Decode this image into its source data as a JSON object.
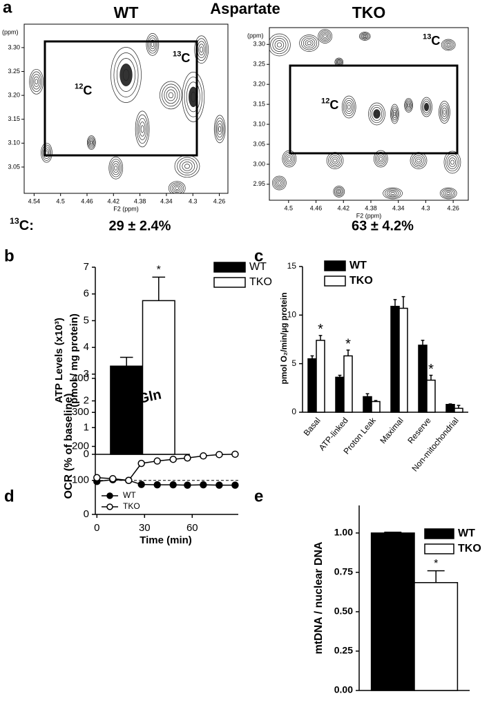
{
  "chart_data": [
    {
      "type": "nmr",
      "panel": "a",
      "heading": "Aspartate",
      "title": "WT",
      "xlabel": "F2 (ppm)",
      "ylabel": "(ppm)",
      "xlim": [
        4.555,
        4.247
      ],
      "ylim": [
        2.995,
        3.349
      ],
      "xticks": [
        4.54,
        4.5,
        4.46,
        4.42,
        4.38,
        4.34,
        4.3,
        4.26
      ],
      "yticks": [
        {
          "value": 3.05,
          "label": "3.05"
        },
        {
          "value": 3.1,
          "label": "3.10"
        },
        {
          "value": 3.15,
          "label": "3.15"
        },
        {
          "value": 3.2,
          "label": "3.20"
        },
        {
          "value": 3.25,
          "label": "3.25"
        },
        {
          "value": 3.3,
          "label": "3.30"
        }
      ],
      "annotations": [
        {
          "sup": "12",
          "text": "C"
        },
        {
          "sup": "13",
          "text": "C"
        }
      ],
      "isotope_label": {
        "sup": "13",
        "text": "C:"
      },
      "result": "29 ± 2.4%"
    },
    {
      "type": "nmr",
      "title": "TKO",
      "xlabel": "F2 (ppm)",
      "ylabel": "(ppm)",
      "xlim": [
        4.528,
        4.238
      ],
      "ylim": [
        2.91,
        3.342
      ],
      "xticks": [
        4.5,
        4.46,
        4.42,
        4.38,
        4.34,
        4.3,
        4.26
      ],
      "yticks": [
        2.95,
        {
          "value": 3.0,
          "label": "3.00"
        },
        3.05,
        {
          "value": 3.1,
          "label": "3.10"
        },
        3.15,
        {
          "value": 3.2,
          "label": "3.20"
        },
        3.25,
        {
          "value": 3.3,
          "label": "3.30"
        }
      ],
      "annotations": [
        {
          "sup": "12",
          "text": "C"
        },
        {
          "sup": "13",
          "text": "C"
        }
      ],
      "result": "63 ± 4.2%"
    },
    {
      "type": "bar",
      "panel": "b",
      "ylabel": [
        "ATP Levels (x10³)",
        "(pmol / mg protein)"
      ],
      "categories": [
        null
      ],
      "series": [
        {
          "name": "WT",
          "color": "#000000",
          "values": [
            3.3
          ],
          "errors": [
            0.33
          ]
        },
        {
          "name": "TKO",
          "color": "#ffffff",
          "values": [
            5.75
          ],
          "errors": [
            0.88
          ]
        }
      ],
      "annotations": [
        {
          "text": "*",
          "series": "TKO"
        }
      ],
      "ylim": [
        0,
        7
      ],
      "yticks": [
        0,
        1,
        2,
        3,
        4,
        5,
        6,
        7
      ]
    },
    {
      "type": "bar",
      "panel": "c",
      "ylabel": [
        "pmol O₂/min/µg protein"
      ],
      "categories": [
        "Basal",
        "ATP-linked",
        "Proton Leak",
        "Maximal",
        "Reserve",
        "Non-mitochondrial"
      ],
      "series": [
        {
          "name": "WT",
          "color": "#000000",
          "values": [
            5.5,
            3.6,
            1.6,
            10.9,
            6.9,
            0.8
          ],
          "errors": [
            0.3,
            0.2,
            0.3,
            0.7,
            0.5,
            0.05
          ]
        },
        {
          "name": "TKO",
          "color": "#ffffff",
          "values": [
            7.4,
            5.8,
            1.1,
            10.7,
            3.3,
            0.4
          ],
          "errors": [
            0.5,
            0.6,
            0.1,
            1.2,
            0.5,
            0.3
          ]
        }
      ],
      "annotations": [
        {
          "text": "*",
          "series": "TKO",
          "category": "Basal"
        },
        {
          "text": "*",
          "series": "TKO",
          "category": "ATP-linked"
        },
        {
          "text": "*",
          "series": "TKO",
          "category": "Reserve"
        }
      ],
      "ylim": [
        0,
        15
      ],
      "yticks": [
        0,
        5,
        10,
        15
      ]
    },
    {
      "type": "line",
      "panel": "d",
      "xlabel": "Time (min)",
      "ylabel": "OCR (% of baseline)",
      "x": [
        0,
        10,
        20,
        28,
        38,
        48,
        57,
        67,
        77,
        87
      ],
      "series": [
        {
          "name": "WT",
          "color": "#000000",
          "marker": "filled",
          "values": [
            97,
            102,
            100,
            88,
            87,
            87,
            86,
            87,
            86,
            86
          ]
        },
        {
          "name": "TKO",
          "color": "#000000",
          "marker": "open",
          "values": [
            108,
            105,
            100,
            150,
            157,
            162,
            166,
            172,
            176,
            177
          ]
        }
      ],
      "hline": 100,
      "annotation": {
        "text": "L-Gln",
        "x": 20
      },
      "xlim": [
        -1,
        89
      ],
      "xticks": [
        0,
        30,
        60
      ],
      "ylim": [
        0,
        400
      ],
      "yticks": [
        0,
        100,
        200,
        300,
        400
      ]
    },
    {
      "type": "bar",
      "panel": "e",
      "ylabel": [
        "mtDNA / nuclear DNA"
      ],
      "categories": [
        null
      ],
      "series": [
        {
          "name": "WT",
          "color": "#000000",
          "values": [
            1.0
          ],
          "errors": [
            0.005
          ]
        },
        {
          "name": "TKO",
          "color": "#ffffff",
          "values": [
            0.685
          ],
          "errors": [
            0.075
          ]
        }
      ],
      "annotations": [
        {
          "text": "*",
          "series": "TKO"
        }
      ],
      "ylim": [
        0,
        1.175
      ],
      "yticks": [
        {
          "value": 0,
          "label": "0.00"
        },
        {
          "value": 0.25,
          "label": "0.25"
        },
        {
          "value": 0.5,
          "label": "0.50"
        },
        {
          "value": 0.75,
          "label": "0.75"
        },
        {
          "value": 1,
          "label": "1.00"
        }
      ]
    }
  ]
}
